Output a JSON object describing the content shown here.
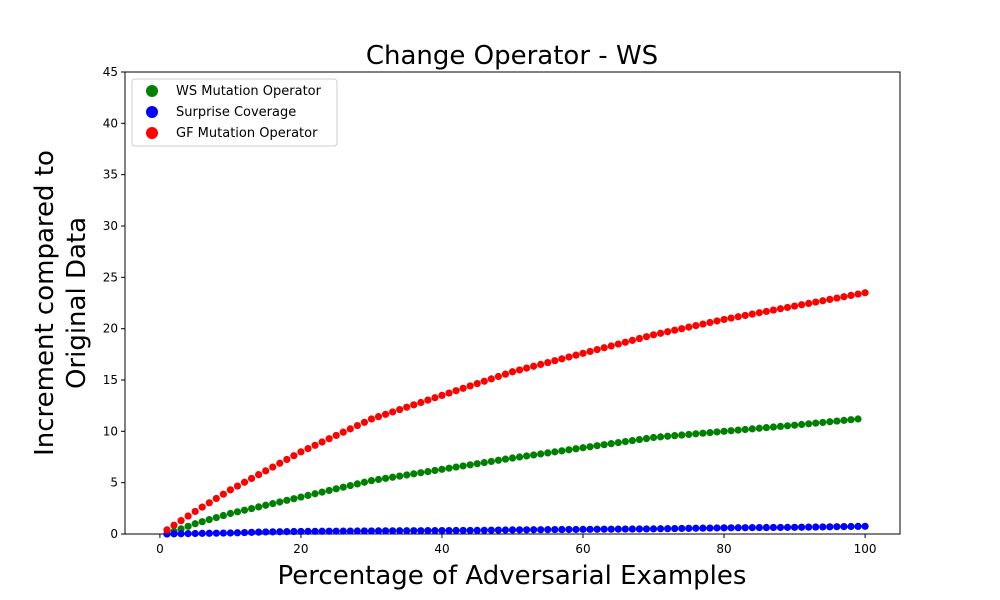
{
  "chart_data": {
    "type": "scatter",
    "title": "Change Operator - WS",
    "xlabel": "Percentage of Adversarial Examples",
    "ylabel_lines": [
      "Increment compared to",
      "Original Data"
    ],
    "xlim": [
      -4.95,
      104.95
    ],
    "ylim": [
      0,
      45
    ],
    "xticks": [
      0,
      20,
      40,
      60,
      80,
      100
    ],
    "yticks": [
      0,
      5,
      10,
      15,
      20,
      25,
      30,
      35,
      40,
      45
    ],
    "grid": false,
    "legend_position": "top-left",
    "series": [
      {
        "name": "WS Mutation Operator",
        "color": "#008000",
        "x_start": 1,
        "x_end": 99,
        "anchors": [
          [
            1,
            0.0
          ],
          [
            2,
            0.25
          ],
          [
            5,
            1.0
          ],
          [
            10,
            2.0
          ],
          [
            20,
            3.6
          ],
          [
            30,
            5.2
          ],
          [
            40,
            6.3
          ],
          [
            50,
            7.4
          ],
          [
            60,
            8.4
          ],
          [
            70,
            9.4
          ],
          [
            80,
            10.0
          ],
          [
            90,
            10.6
          ],
          [
            99,
            11.2
          ]
        ]
      },
      {
        "name": "Surprise Coverage",
        "color": "#0000ff",
        "x_start": 1,
        "x_end": 100,
        "anchors": [
          [
            1,
            0.0
          ],
          [
            5,
            0.05
          ],
          [
            10,
            0.1
          ],
          [
            15,
            0.2
          ],
          [
            20,
            0.25
          ],
          [
            30,
            0.3
          ],
          [
            45,
            0.35
          ],
          [
            50,
            0.4
          ],
          [
            60,
            0.45
          ],
          [
            70,
            0.5
          ],
          [
            80,
            0.6
          ],
          [
            90,
            0.65
          ],
          [
            100,
            0.75
          ]
        ]
      },
      {
        "name": "GF Mutation Operator",
        "color": "#ff0000",
        "x_start": 1,
        "x_end": 100,
        "anchors": [
          [
            1,
            0.4
          ],
          [
            5,
            2.2
          ],
          [
            10,
            4.3
          ],
          [
            20,
            8.0
          ],
          [
            30,
            11.2
          ],
          [
            40,
            13.5
          ],
          [
            50,
            15.8
          ],
          [
            60,
            17.6
          ],
          [
            70,
            19.4
          ],
          [
            80,
            20.9
          ],
          [
            90,
            22.2
          ],
          [
            100,
            23.5
          ]
        ]
      }
    ]
  }
}
